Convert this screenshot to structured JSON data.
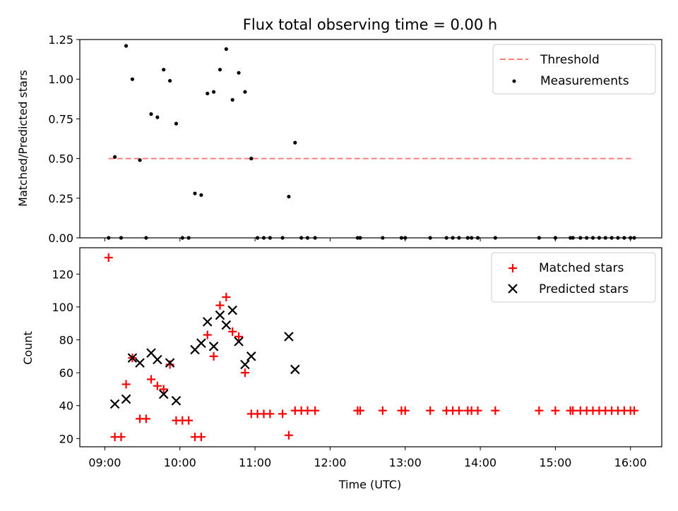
{
  "chart_data": [
    {
      "type": "scatter",
      "title": "Flux total observing time = 0.00 h",
      "xlabel": "",
      "ylabel": "Matched/Predicted stars",
      "xlim": [
        "08:40",
        "16:25"
      ],
      "ylim": [
        0,
        1.25
      ],
      "yticks": [
        "0.00",
        "0.25",
        "0.50",
        "0.75",
        "1.00",
        "1.25"
      ],
      "xticks": [
        "09:00",
        "10:00",
        "11:00",
        "12:00",
        "13:00",
        "14:00",
        "15:00",
        "16:00"
      ],
      "legend_position": "top-right",
      "colors": {
        "threshold": "#ff7f7f",
        "measurements": "#000000"
      },
      "threshold": {
        "name": "Threshold",
        "value": 0.5,
        "x_start": "09:03",
        "x_end": "16:03"
      },
      "series": [
        {
          "name": "Measurements",
          "points": [
            [
              "09:03",
              0.0
            ],
            [
              "09:08",
              0.51
            ],
            [
              "09:13",
              0.0
            ],
            [
              "09:17",
              1.21
            ],
            [
              "09:22",
              1.0
            ],
            [
              "09:28",
              0.49
            ],
            [
              "09:33",
              0.0
            ],
            [
              "09:37",
              0.78
            ],
            [
              "09:42",
              0.76
            ],
            [
              "09:47",
              1.06
            ],
            [
              "09:52",
              0.99
            ],
            [
              "09:57",
              0.72
            ],
            [
              "10:02",
              0.0
            ],
            [
              "10:07",
              0.0
            ],
            [
              "10:12",
              0.28
            ],
            [
              "10:17",
              0.27
            ],
            [
              "10:22",
              0.91
            ],
            [
              "10:27",
              0.92
            ],
            [
              "10:32",
              1.06
            ],
            [
              "10:37",
              1.19
            ],
            [
              "10:42",
              0.87
            ],
            [
              "10:47",
              1.04
            ],
            [
              "10:52",
              0.92
            ],
            [
              "10:57",
              0.5
            ],
            [
              "11:02",
              0.0
            ],
            [
              "11:07",
              0.0
            ],
            [
              "11:12",
              0.0
            ],
            [
              "11:22",
              0.0
            ],
            [
              "11:27",
              0.26
            ],
            [
              "11:32",
              0.6
            ],
            [
              "11:37",
              0.0
            ],
            [
              "11:42",
              0.0
            ],
            [
              "11:48",
              0.0
            ],
            [
              "12:22",
              0.0
            ],
            [
              "12:24",
              0.0
            ],
            [
              "12:42",
              0.0
            ],
            [
              "12:57",
              0.0
            ],
            [
              "13:00",
              0.0
            ],
            [
              "13:20",
              0.0
            ],
            [
              "13:33",
              0.0
            ],
            [
              "13:38",
              0.0
            ],
            [
              "13:43",
              0.0
            ],
            [
              "13:50",
              0.0
            ],
            [
              "13:53",
              0.0
            ],
            [
              "13:58",
              0.0
            ],
            [
              "14:12",
              0.0
            ],
            [
              "14:47",
              0.0
            ],
            [
              "15:00",
              0.0
            ],
            [
              "15:12",
              0.0
            ],
            [
              "15:14",
              0.0
            ],
            [
              "15:20",
              0.0
            ],
            [
              "15:25",
              0.0
            ],
            [
              "15:30",
              0.0
            ],
            [
              "15:35",
              0.0
            ],
            [
              "15:40",
              0.0
            ],
            [
              "15:45",
              0.0
            ],
            [
              "15:50",
              0.0
            ],
            [
              "15:55",
              0.0
            ],
            [
              "16:00",
              0.0
            ],
            [
              "16:03",
              0.0
            ]
          ]
        }
      ]
    },
    {
      "type": "scatter",
      "title": "",
      "xlabel": "Time (UTC)",
      "ylabel": "Count",
      "xlim": [
        "08:40",
        "16:25"
      ],
      "ylim": [
        15,
        136
      ],
      "yticks": [
        "20",
        "40",
        "60",
        "80",
        "100",
        "120"
      ],
      "xticks": [
        "09:00",
        "10:00",
        "11:00",
        "12:00",
        "13:00",
        "14:00",
        "15:00",
        "16:00"
      ],
      "legend_position": "top-right",
      "colors": {
        "matched": "#ff0000",
        "predicted": "#000000"
      },
      "series": [
        {
          "name": "Matched stars",
          "marker": "plus",
          "points": [
            [
              "09:03",
              130
            ],
            [
              "09:08",
              21
            ],
            [
              "09:13",
              21
            ],
            [
              "09:17",
              53
            ],
            [
              "09:22",
              69
            ],
            [
              "09:28",
              32
            ],
            [
              "09:33",
              32
            ],
            [
              "09:37",
              56
            ],
            [
              "09:42",
              52
            ],
            [
              "09:47",
              50
            ],
            [
              "09:52",
              65
            ],
            [
              "09:57",
              31
            ],
            [
              "10:02",
              31
            ],
            [
              "10:07",
              31
            ],
            [
              "10:12",
              21
            ],
            [
              "10:17",
              21
            ],
            [
              "10:22",
              83
            ],
            [
              "10:27",
              70
            ],
            [
              "10:32",
              101
            ],
            [
              "10:37",
              106
            ],
            [
              "10:42",
              85
            ],
            [
              "10:47",
              82
            ],
            [
              "10:52",
              60
            ],
            [
              "10:57",
              35
            ],
            [
              "11:02",
              35
            ],
            [
              "11:07",
              35
            ],
            [
              "11:12",
              35
            ],
            [
              "11:22",
              35
            ],
            [
              "11:27",
              22
            ],
            [
              "11:32",
              37
            ],
            [
              "11:37",
              37
            ],
            [
              "11:42",
              37
            ],
            [
              "11:48",
              37
            ],
            [
              "12:22",
              37
            ],
            [
              "12:24",
              37
            ],
            [
              "12:42",
              37
            ],
            [
              "12:57",
              37
            ],
            [
              "13:00",
              37
            ],
            [
              "13:20",
              37
            ],
            [
              "13:33",
              37
            ],
            [
              "13:38",
              37
            ],
            [
              "13:43",
              37
            ],
            [
              "13:50",
              37
            ],
            [
              "13:53",
              37
            ],
            [
              "13:58",
              37
            ],
            [
              "14:12",
              37
            ],
            [
              "14:47",
              37
            ],
            [
              "15:00",
              37
            ],
            [
              "15:12",
              37
            ],
            [
              "15:14",
              37
            ],
            [
              "15:20",
              37
            ],
            [
              "15:25",
              37
            ],
            [
              "15:30",
              37
            ],
            [
              "15:35",
              37
            ],
            [
              "15:40",
              37
            ],
            [
              "15:45",
              37
            ],
            [
              "15:50",
              37
            ],
            [
              "15:55",
              37
            ],
            [
              "16:00",
              37
            ],
            [
              "16:03",
              37
            ]
          ]
        },
        {
          "name": "Predicted stars",
          "marker": "x",
          "points": [
            [
              "09:08",
              41
            ],
            [
              "09:17",
              44
            ],
            [
              "09:22",
              69
            ],
            [
              "09:28",
              66
            ],
            [
              "09:37",
              72
            ],
            [
              "09:42",
              68
            ],
            [
              "09:47",
              47
            ],
            [
              "09:52",
              66
            ],
            [
              "09:57",
              43
            ],
            [
              "10:12",
              74
            ],
            [
              "10:17",
              78
            ],
            [
              "10:22",
              91
            ],
            [
              "10:27",
              76
            ],
            [
              "10:32",
              95
            ],
            [
              "10:37",
              89
            ],
            [
              "10:42",
              98
            ],
            [
              "10:47",
              79
            ],
            [
              "10:52",
              65
            ],
            [
              "10:57",
              70
            ],
            [
              "11:27",
              82
            ],
            [
              "11:32",
              62
            ]
          ]
        }
      ]
    }
  ]
}
